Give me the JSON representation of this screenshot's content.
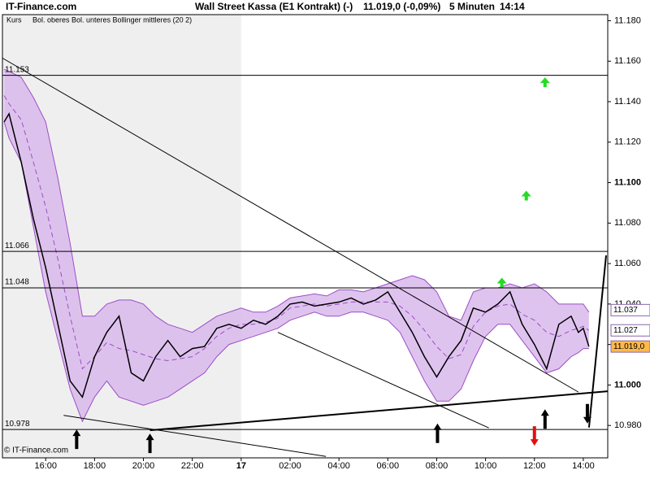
{
  "header": {
    "site": "IT-Finance.com",
    "instrument": "Wall Street Kassa (E1 Kontrakt) (-)",
    "quote": "11.019,0 (-0,09%)",
    "interval": "5 Minuten",
    "time": "14:14"
  },
  "footer": "© IT-Finance.com",
  "chart_data": {
    "type": "line",
    "x": [
      14.3,
      14.5,
      15,
      15.5,
      16,
      16.5,
      17,
      17.5,
      18,
      18.5,
      19,
      19.5,
      20,
      20.5,
      21,
      21.5,
      22,
      22.5,
      23,
      23.5,
      24,
      24.5,
      25,
      25.5,
      26,
      26.5,
      27,
      27.5,
      28,
      28.5,
      29,
      29.5,
      30,
      30.5,
      31,
      31.5,
      32,
      32.5,
      33,
      33.5,
      34,
      34.5,
      35,
      35.5,
      36,
      36.5,
      37,
      37.5,
      37.8,
      38,
      38.23
    ],
    "series": [
      {
        "name": "Kurs",
        "color": "#000000",
        "values": [
          11.13,
          11.134,
          11.11,
          11.082,
          11.058,
          11.03,
          11.002,
          10.994,
          11.014,
          11.026,
          11.034,
          11.006,
          11.002,
          11.014,
          11.022,
          11.014,
          11.018,
          11.019,
          11.028,
          11.03,
          11.028,
          11.032,
          11.03,
          11.034,
          11.04,
          11.041,
          11.039,
          11.04,
          11.041,
          11.043,
          11.04,
          11.042,
          11.046,
          11.036,
          11.026,
          11.014,
          11.004,
          11.014,
          11.022,
          11.038,
          11.036,
          11.04,
          11.046,
          11.03,
          11.02,
          11.008,
          11.03,
          11.034,
          11.026,
          11.028,
          11.019
        ]
      }
    ],
    "bands": {
      "name": "Bol. oberes Bol. unteres Bollinger mittleres (20 2)",
      "color": "#9a4fc4",
      "fill": "#d9b8ec",
      "upper": [
        11.156,
        11.155,
        11.152,
        11.142,
        11.13,
        11.102,
        11.07,
        11.034,
        11.034,
        11.04,
        11.042,
        11.042,
        11.04,
        11.034,
        11.03,
        11.028,
        11.026,
        11.03,
        11.034,
        11.036,
        11.038,
        11.036,
        11.036,
        11.039,
        11.043,
        11.044,
        11.045,
        11.044,
        11.047,
        11.047,
        11.046,
        11.048,
        11.05,
        11.052,
        11.054,
        11.052,
        11.046,
        11.034,
        11.032,
        11.046,
        11.048,
        11.048,
        11.05,
        11.048,
        11.05,
        11.046,
        11.04,
        11.04,
        11.04,
        11.04,
        11.036
      ],
      "lower": [
        11.13,
        11.122,
        11.11,
        11.078,
        11.046,
        11.022,
        10.998,
        10.982,
        10.994,
        11.002,
        10.994,
        10.992,
        10.99,
        10.992,
        10.994,
        10.998,
        11.002,
        11.006,
        11.014,
        11.02,
        11.022,
        11.024,
        11.026,
        11.028,
        11.032,
        11.034,
        11.036,
        11.034,
        11.034,
        11.036,
        11.036,
        11.034,
        11.032,
        11.026,
        11.014,
        11.002,
        10.992,
        10.992,
        10.998,
        11.012,
        11.024,
        11.03,
        11.03,
        11.022,
        11.014,
        11.006,
        11.008,
        11.014,
        11.016,
        11.018,
        11.018
      ],
      "middle": [
        11.143,
        11.139,
        11.131,
        11.11,
        11.088,
        11.062,
        11.034,
        11.008,
        11.014,
        11.021,
        11.018,
        11.017,
        11.015,
        11.013,
        11.012,
        11.013,
        11.014,
        11.018,
        11.024,
        11.028,
        11.03,
        11.03,
        11.031,
        11.033,
        11.038,
        11.039,
        11.04,
        11.039,
        11.04,
        11.041,
        11.041,
        11.041,
        11.041,
        11.039,
        11.034,
        11.027,
        11.019,
        11.013,
        11.015,
        11.029,
        11.036,
        11.039,
        11.04,
        11.035,
        11.032,
        11.026,
        11.024,
        11.027,
        11.028,
        11.029,
        11.027
      ]
    },
    "levels": [
      {
        "value": 11.153
      },
      {
        "value": 11.066
      },
      {
        "value": 11.048
      },
      {
        "value": 10.978
      }
    ],
    "price_labels": [
      {
        "value": 11.037,
        "label": "11.037",
        "fill": "#ffffff"
      },
      {
        "value": 11.027,
        "label": "11.027",
        "fill": "#ffffff"
      },
      {
        "value": 11.019,
        "label": "11.019,0",
        "fill": "#ffb84d"
      }
    ],
    "trendlines": [
      {
        "x": [
          14.233,
          37.8
        ],
        "y": [
          11.1615,
          10.9965
        ],
        "width": 1
      },
      {
        "x": [
          25.5,
          34.133
        ],
        "y": [
          11.026,
          10.9788
        ],
        "width": 1
      },
      {
        "x": [
          20.267,
          39
        ],
        "y": [
          10.9776,
          10.9969
        ],
        "width": 2
      },
      {
        "x": [
          16.733,
          27.467
        ],
        "y": [
          10.985,
          10.9647
        ],
        "width": 1
      },
      {
        "x": [
          38.233,
          38.933
        ],
        "y": [
          10.979,
          11.064
        ],
        "width": 2
      }
    ],
    "signals": [
      {
        "x": 36.433,
        "y": 11.152,
        "dir": "up",
        "color": "#22dd22"
      },
      {
        "x": 35.667,
        "y": 11.096,
        "dir": "up",
        "color": "#22dd22"
      },
      {
        "x": 34.667,
        "y": 11.053,
        "dir": "up",
        "color": "#22dd22"
      },
      {
        "x": 17.267,
        "y": 10.978,
        "dir": "up",
        "color": "#000000"
      },
      {
        "x": 20.267,
        "y": 10.976,
        "dir": "up",
        "color": "#000000"
      },
      {
        "x": 32.033,
        "y": 10.981,
        "dir": "up",
        "color": "#000000"
      },
      {
        "x": 36.433,
        "y": 10.988,
        "dir": "up",
        "color": "#000000"
      },
      {
        "x": 36.0,
        "y": 10.97,
        "dir": "down",
        "color": "#dd1111"
      },
      {
        "x": 38.167,
        "y": 10.981,
        "dir": "down",
        "color": "#000000"
      }
    ],
    "shaded_until": 24,
    "xlim": [
      14.23,
      39
    ],
    "ylim": [
      10.964,
      11.183
    ],
    "xticks": [
      {
        "value": 16,
        "label": "16:00"
      },
      {
        "value": 18,
        "label": "18:00"
      },
      {
        "value": 20,
        "label": "20:00"
      },
      {
        "value": 22,
        "label": "22:00"
      },
      {
        "value": 24,
        "label": "17"
      },
      {
        "value": 26,
        "label": "02:00"
      },
      {
        "value": 28,
        "label": "04:00"
      },
      {
        "value": 30,
        "label": "06:00"
      },
      {
        "value": 32,
        "label": "08:00"
      },
      {
        "value": 34,
        "label": "10:00"
      },
      {
        "value": 36,
        "label": "12:00"
      },
      {
        "value": 38,
        "label": "14:00"
      }
    ],
    "yticks": [
      {
        "value": 10.98,
        "label": "10.980"
      },
      {
        "value": 11.0,
        "label": "11.000"
      },
      {
        "value": 11.02,
        "label": "11.020"
      },
      {
        "value": 11.04,
        "label": "11.040"
      },
      {
        "value": 11.06,
        "label": "11.060"
      },
      {
        "value": 11.08,
        "label": "11.080"
      },
      {
        "value": 11.1,
        "label": "11.100"
      },
      {
        "value": 11.12,
        "label": "11.120"
      },
      {
        "value": 11.14,
        "label": "11.140"
      },
      {
        "value": 11.16,
        "label": "11.160"
      },
      {
        "value": 11.18,
        "label": "11.180"
      }
    ]
  }
}
